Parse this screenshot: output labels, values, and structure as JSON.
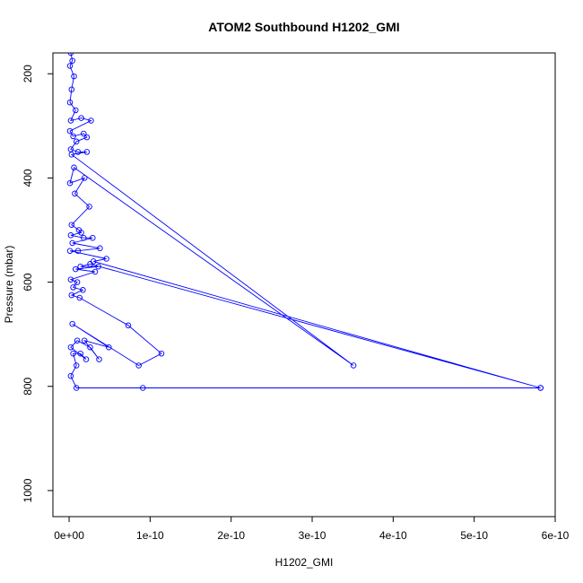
{
  "chart_data": {
    "type": "line",
    "title": "ATOM2 Southbound H1202_GMI",
    "xlabel": "H1202_GMI",
    "ylabel": "Pressure (mbar)",
    "xlim": [
      -2e-11,
      6e-10
    ],
    "ylim": [
      1050,
      160
    ],
    "y_reversed": true,
    "grid": false,
    "x_ticks": [
      0,
      1e-10,
      2e-10,
      3e-10,
      4e-10,
      5e-10,
      6e-10
    ],
    "x_tick_labels": [
      "0e+00",
      "1e-10",
      "2e-10",
      "3e-10",
      "4e-10",
      "5e-10",
      "6e-10"
    ],
    "y_ticks": [
      200,
      400,
      600,
      800,
      1000
    ],
    "y_tick_labels": [
      "200",
      "400",
      "600",
      "800",
      "1000"
    ],
    "series": [
      {
        "color": "#0000ff",
        "marker": "open-circle",
        "points": [
          [
            2e-12,
            160
          ],
          [
            4e-12,
            175
          ],
          [
            1e-12,
            185
          ],
          [
            6e-12,
            205
          ],
          [
            3e-12,
            230
          ],
          [
            1e-12,
            255
          ],
          [
            8e-12,
            270
          ],
          [
            2e-12,
            290
          ],
          [
            1.5e-11,
            285
          ],
          [
            2.7e-11,
            290
          ],
          [
            1e-12,
            310
          ],
          [
            5e-12,
            320
          ],
          [
            1.8e-11,
            315
          ],
          [
            2.2e-11,
            322
          ],
          [
            9e-12,
            330
          ],
          [
            2e-12,
            345
          ],
          [
            1.1e-11,
            350
          ],
          [
            2.2e-11,
            350
          ],
          [
            3e-12,
            355
          ],
          [
            3.51e-10,
            760
          ],
          [
            6e-12,
            380
          ],
          [
            1e-12,
            410
          ],
          [
            1.9e-11,
            400
          ],
          [
            7e-12,
            430
          ],
          [
            2.5e-11,
            455
          ],
          [
            3e-12,
            490
          ],
          [
            1.2e-11,
            500
          ],
          [
            1.5e-11,
            505
          ],
          [
            2e-12,
            510
          ],
          [
            1.8e-11,
            515
          ],
          [
            2.9e-11,
            515
          ],
          [
            4e-12,
            525
          ],
          [
            3.8e-11,
            535
          ],
          [
            1.1e-11,
            540
          ],
          [
            1e-12,
            540
          ],
          [
            4.6e-11,
            555
          ],
          [
            3e-11,
            560
          ],
          [
            5.82e-10,
            803
          ],
          [
            2.6e-11,
            565
          ],
          [
            1.4e-11,
            570
          ],
          [
            3.6e-11,
            570
          ],
          [
            8e-12,
            575
          ],
          [
            3.2e-11,
            580
          ],
          [
            2e-12,
            595
          ],
          [
            1e-11,
            600
          ],
          [
            5e-12,
            610
          ],
          [
            1.7e-11,
            615
          ],
          [
            3e-12,
            625
          ],
          [
            1.3e-11,
            630
          ],
          [
            7.3e-11,
            683
          ],
          [
            1.14e-10,
            737
          ],
          [
            8.6e-11,
            760
          ],
          [
            4e-12,
            680
          ],
          [
            4.9e-11,
            725
          ],
          [
            1.9e-11,
            712
          ],
          [
            3.7e-11,
            748
          ],
          [
            2.6e-11,
            725
          ],
          [
            1e-11,
            712
          ],
          [
            2e-12,
            725
          ],
          [
            2.1e-11,
            748
          ],
          [
            1.4e-11,
            737
          ],
          [
            5e-12,
            737
          ],
          [
            9e-12,
            760
          ],
          [
            2e-12,
            780
          ],
          [
            9e-12,
            803
          ],
          [
            9.1e-11,
            803
          ],
          [
            5.82e-10,
            803
          ]
        ]
      }
    ]
  }
}
